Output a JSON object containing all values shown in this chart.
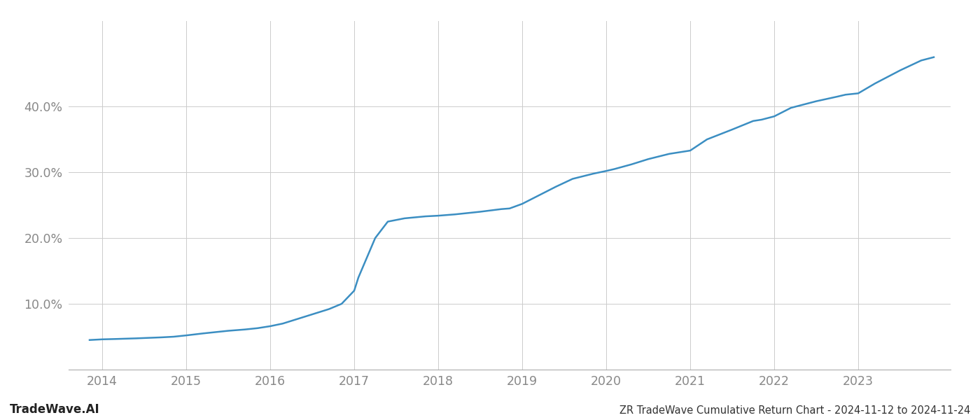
{
  "x_years": [
    2013.85,
    2014.0,
    2014.15,
    2014.4,
    2014.7,
    2014.85,
    2015.0,
    2015.2,
    2015.5,
    2015.7,
    2015.85,
    2016.0,
    2016.15,
    2016.3,
    2016.5,
    2016.7,
    2016.85,
    2017.0,
    2017.05,
    2017.15,
    2017.25,
    2017.4,
    2017.6,
    2017.85,
    2018.0,
    2018.2,
    2018.5,
    2018.75,
    2018.85,
    2019.0,
    2019.2,
    2019.4,
    2019.6,
    2019.85,
    2020.0,
    2020.1,
    2020.3,
    2020.5,
    2020.75,
    2020.85,
    2021.0,
    2021.2,
    2021.5,
    2021.75,
    2021.85,
    2022.0,
    2022.2,
    2022.5,
    2022.75,
    2022.85,
    2023.0,
    2023.2,
    2023.5,
    2023.75,
    2023.9
  ],
  "y_values": [
    4.5,
    4.6,
    4.65,
    4.75,
    4.9,
    5.0,
    5.2,
    5.5,
    5.9,
    6.1,
    6.3,
    6.6,
    7.0,
    7.6,
    8.4,
    9.2,
    10.0,
    12.0,
    14.0,
    17.0,
    20.0,
    22.5,
    23.0,
    23.3,
    23.4,
    23.6,
    24.0,
    24.4,
    24.5,
    25.2,
    26.5,
    27.8,
    29.0,
    29.8,
    30.2,
    30.5,
    31.2,
    32.0,
    32.8,
    33.0,
    33.3,
    35.0,
    36.5,
    37.8,
    38.0,
    38.5,
    39.8,
    40.8,
    41.5,
    41.8,
    42.0,
    43.5,
    45.5,
    47.0,
    47.5
  ],
  "line_color": "#3b8ec2",
  "line_width": 1.8,
  "background_color": "#ffffff",
  "grid_color": "#cccccc",
  "grid_linewidth": 0.7,
  "tick_color": "#888888",
  "title": "ZR TradeWave Cumulative Return Chart - 2024-11-12 to 2024-11-24",
  "watermark": "TradeWave.AI",
  "xlim": [
    2013.6,
    2024.1
  ],
  "ylim": [
    0,
    53
  ],
  "yticks": [
    10.0,
    20.0,
    30.0,
    40.0
  ],
  "xticks": [
    2014,
    2015,
    2016,
    2017,
    2018,
    2019,
    2020,
    2021,
    2022,
    2023
  ],
  "title_fontsize": 10.5,
  "tick_fontsize": 12.5,
  "watermark_fontsize": 12
}
